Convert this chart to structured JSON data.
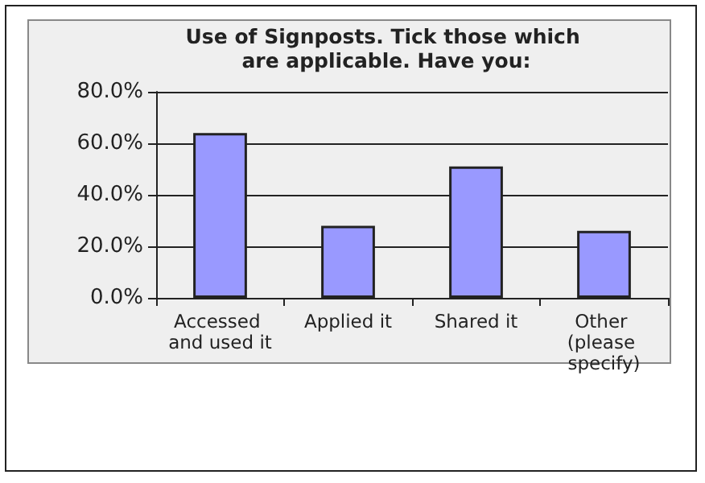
{
  "chart_data": {
    "type": "bar",
    "title": "Use of Signposts. Tick those which are applicable. Have you:",
    "categories": [
      "Accessed and used it",
      "Applied it",
      "Shared it",
      "Other (please specify)"
    ],
    "values": [
      64,
      28,
      51,
      26
    ],
    "color": "#9999ff",
    "ylim": [
      0,
      80
    ],
    "yticks": [
      {
        "value": 0,
        "label": "0.0%"
      },
      {
        "value": 20,
        "label": "20.0%"
      },
      {
        "value": 40,
        "label": "40.0%"
      },
      {
        "value": 60,
        "label": "60.0%"
      },
      {
        "value": 80,
        "label": "80.0%"
      }
    ],
    "grid": "y"
  }
}
